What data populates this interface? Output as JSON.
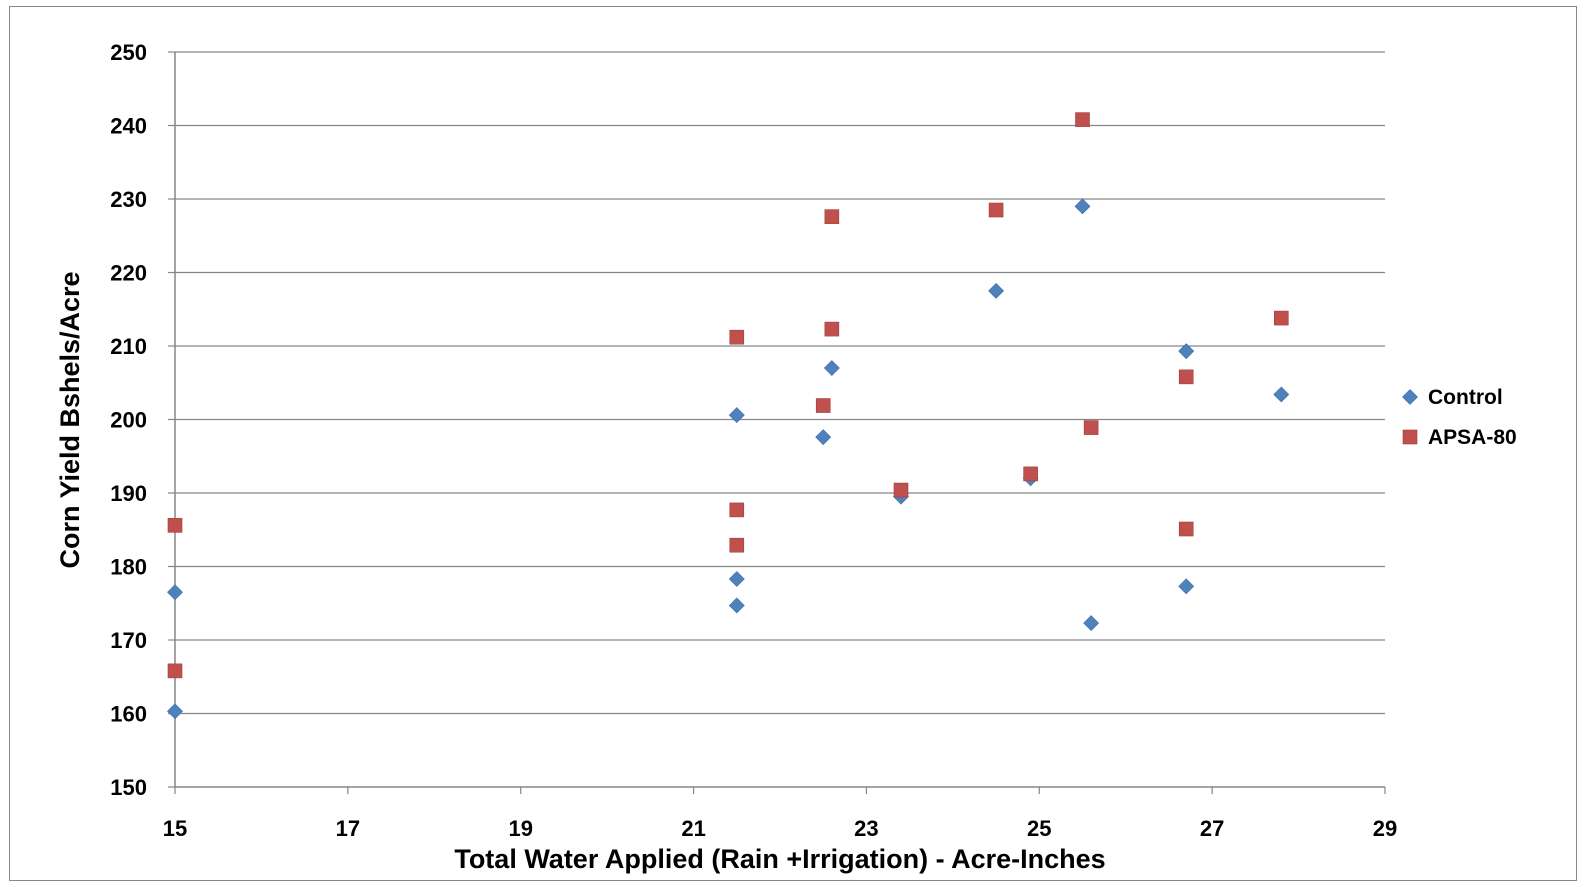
{
  "chart_data": {
    "type": "scatter",
    "title": "",
    "xlabel": "Total Water Applied (Rain +Irrigation) - Acre-Inches",
    "ylabel": "Corn Yield Bshels/Acre",
    "xlim": [
      15,
      29
    ],
    "ylim": [
      150,
      250
    ],
    "x_ticks": [
      "15",
      "17",
      "19",
      "21",
      "23",
      "25",
      "27",
      "29"
    ],
    "y_ticks": [
      "150",
      "160",
      "170",
      "180",
      "190",
      "200",
      "210",
      "220",
      "230",
      "240",
      "250"
    ],
    "grid": "horizontal",
    "legend_position": "right",
    "series": [
      {
        "name": "Control",
        "marker": "diamond",
        "color": "#4F81BD",
        "points": [
          [
            15,
            176.5
          ],
          [
            15,
            160.3
          ],
          [
            21.5,
            200.6
          ],
          [
            21.5,
            178.3
          ],
          [
            21.5,
            174.7
          ],
          [
            22.5,
            197.6
          ],
          [
            22.6,
            207.0
          ],
          [
            23.4,
            189.5
          ],
          [
            24.5,
            217.5
          ],
          [
            24.9,
            192.0
          ],
          [
            25.5,
            229.0
          ],
          [
            25.6,
            172.3
          ],
          [
            26.7,
            209.3
          ],
          [
            26.7,
            177.3
          ],
          [
            27.8,
            203.4
          ]
        ]
      },
      {
        "name": "APSA-80",
        "marker": "square",
        "color": "#C0504D",
        "points": [
          [
            15,
            185.6
          ],
          [
            15,
            165.8
          ],
          [
            21.5,
            211.2
          ],
          [
            21.5,
            187.7
          ],
          [
            21.5,
            182.9
          ],
          [
            22.5,
            201.9
          ],
          [
            22.6,
            227.6
          ],
          [
            22.6,
            212.3
          ],
          [
            23.4,
            190.4
          ],
          [
            24.5,
            228.5
          ],
          [
            24.9,
            192.6
          ],
          [
            25.5,
            240.8
          ],
          [
            25.6,
            198.9
          ],
          [
            26.7,
            205.8
          ],
          [
            26.7,
            185.1
          ],
          [
            27.8,
            213.8
          ]
        ]
      }
    ]
  }
}
